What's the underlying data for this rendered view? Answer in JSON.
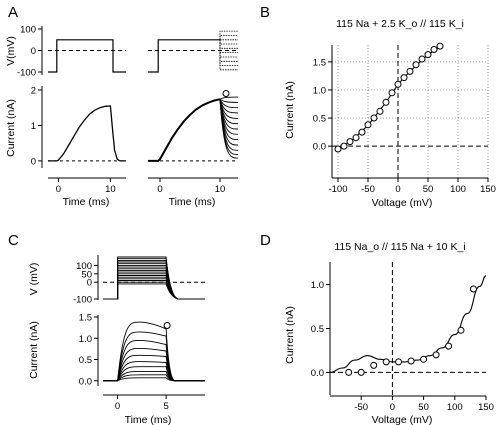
{
  "panels": {
    "A": {
      "label": "A"
    },
    "B": {
      "label": "B"
    },
    "C": {
      "label": "C"
    },
    "D": {
      "label": "D"
    }
  },
  "chart_data": [
    {
      "panel": "A-left-voltage",
      "type": "line",
      "ylabel": "V(mV)",
      "ylim": [
        -100,
        100
      ],
      "yticks": [
        -100,
        0,
        100
      ],
      "xlim": [
        -2,
        13
      ],
      "series": [
        {
          "x": [
            -2,
            -0.3,
            -0.3,
            10.5,
            10.5,
            13
          ],
          "values": [
            -100,
            -100,
            50,
            50,
            -100,
            -100
          ]
        }
      ],
      "reference_line": 0
    },
    {
      "panel": "A-right-voltage",
      "type": "line",
      "xlim": [
        -2,
        13
      ],
      "series": [
        {
          "x": [
            -2,
            -0.3,
            -0.3,
            10,
            10,
            13
          ],
          "values": [
            -100,
            -100,
            50,
            50,
            90,
            90
          ]
        }
      ],
      "step_family": {
        "x_start": 10,
        "x_end": 13,
        "values": [
          90,
          70,
          50,
          30,
          10,
          -10,
          -30,
          -50,
          -70,
          -90
        ]
      },
      "reference_line": 0
    },
    {
      "panel": "A-left-current",
      "type": "line",
      "xlabel": "Time (ms)",
      "ylabel": "Current (nA)",
      "xlim": [
        -2,
        13
      ],
      "ylim": [
        -0.2,
        2
      ],
      "xticks": [
        0,
        10
      ],
      "yticks": [
        0,
        1,
        2
      ],
      "series": [
        {
          "x": [
            -2,
            -0.3,
            0,
            1,
            2,
            3,
            4,
            5,
            6,
            7,
            8,
            9,
            10,
            10.4,
            10.8,
            11.3,
            11.8,
            13
          ],
          "values": [
            0,
            0,
            0.02,
            0.2,
            0.45,
            0.7,
            0.95,
            1.15,
            1.32,
            1.43,
            1.5,
            1.54,
            1.55,
            0.9,
            0.3,
            0.05,
            0,
            0
          ]
        }
      ],
      "reference_line": 0
    },
    {
      "panel": "A-right-current",
      "type": "line",
      "xlabel": "Time (ms)",
      "xlim": [
        -2,
        13
      ],
      "ylim": [
        -0.2,
        2
      ],
      "xticks": [
        0,
        10
      ],
      "series": [
        {
          "x": [
            -2,
            -0.3,
            0,
            1,
            2,
            3,
            4,
            5,
            6,
            7,
            8,
            9,
            10
          ],
          "values": [
            0,
            0,
            0.05,
            0.35,
            0.65,
            0.9,
            1.12,
            1.3,
            1.45,
            1.56,
            1.64,
            1.7,
            1.74
          ]
        }
      ],
      "tail_levels": [
        1.8,
        1.65,
        1.5,
        1.35,
        1.2,
        1.05,
        0.9,
        0.75,
        0.6,
        0.45,
        0.3,
        0.18,
        0.08
      ],
      "marker": {
        "x": 11,
        "y": 1.9
      },
      "reference_line": 0
    },
    {
      "panel": "B",
      "type": "scatter",
      "title": "115 Na + 2.5 K_o // 115 K_i",
      "xlabel": "Voltage (mV)",
      "ylabel": "Current (nA)",
      "xlim": [
        -110,
        150
      ],
      "ylim": [
        -0.3,
        1.8
      ],
      "xticks": [
        -100,
        -50,
        0,
        50,
        100,
        150
      ],
      "yticks": [
        0.0,
        0.5,
        1.0,
        1.5
      ],
      "grid": true,
      "series": [
        {
          "x": [
            -100,
            -90,
            -80,
            -70,
            -60,
            -50,
            -40,
            -30,
            -20,
            -10,
            0,
            10,
            20,
            30,
            40,
            50,
            60,
            70
          ],
          "values": [
            -0.05,
            0.0,
            0.08,
            0.15,
            0.25,
            0.38,
            0.5,
            0.62,
            0.78,
            0.95,
            1.1,
            1.22,
            1.33,
            1.45,
            1.55,
            1.63,
            1.72,
            1.78
          ]
        }
      ],
      "fit_line": {
        "x": [
          -105,
          -80,
          -50,
          -20,
          0,
          20,
          50,
          75
        ],
        "values": [
          -0.05,
          0.07,
          0.37,
          0.78,
          1.1,
          1.33,
          1.63,
          1.8
        ]
      },
      "reference_lines": {
        "x": 0,
        "y": 0
      }
    },
    {
      "panel": "C-voltage",
      "type": "line",
      "ylabel": "V (mV)",
      "xlim": [
        -1.5,
        9
      ],
      "ylim": [
        -100,
        150
      ],
      "yticks": [
        -100,
        0,
        50,
        100
      ],
      "step_family": {
        "x_start": 0,
        "x_end": 5,
        "values": [
          150,
          140,
          130,
          120,
          110,
          100,
          90,
          80,
          70,
          60,
          50,
          40,
          30,
          20,
          10,
          0,
          -10
        ]
      },
      "reference_line": 0
    },
    {
      "panel": "C-current",
      "type": "line",
      "xlabel": "Time (ms)",
      "ylabel": "Current (nA)",
      "xlim": [
        -1.5,
        9
      ],
      "ylim": [
        -0.1,
        1.5
      ],
      "xticks": [
        0,
        5
      ],
      "yticks": [
        0.0,
        0.5,
        1.0,
        1.5
      ],
      "series": [
        {
          "name": "",
          "plateau": 1.38,
          "end": 1.22
        },
        {
          "name": "",
          "plateau": 1.15,
          "end": 1.05
        },
        {
          "name": "",
          "plateau": 0.95,
          "end": 0.85
        },
        {
          "name": "",
          "plateau": 0.76,
          "end": 0.7
        },
        {
          "name": "",
          "plateau": 0.6,
          "end": 0.57
        },
        {
          "name": "",
          "plateau": 0.45,
          "end": 0.43
        },
        {
          "name": "",
          "plateau": 0.33,
          "end": 0.33
        },
        {
          "name": "",
          "plateau": 0.22,
          "end": 0.22
        },
        {
          "name": "",
          "plateau": 0.14,
          "end": 0.14
        },
        {
          "name": "",
          "plateau": 0.07,
          "end": 0.07
        }
      ],
      "marker": {
        "x": 5.1,
        "y": 1.3
      }
    },
    {
      "panel": "D",
      "type": "scatter",
      "title": "115 Na_o // 115 Na + 10 K_i",
      "xlabel": "Voltage (mV)",
      "ylabel": "Current (nA)",
      "xlim": [
        -100,
        150
      ],
      "ylim": [
        -0.2,
        1.2
      ],
      "xticks": [
        -50,
        0,
        50,
        100,
        150
      ],
      "yticks": [
        0.0,
        0.5,
        1.0
      ],
      "series": [
        {
          "x": [
            -70,
            -50,
            -30,
            -10,
            10,
            30,
            50,
            70,
            90,
            110,
            130
          ],
          "values": [
            0.0,
            0.0,
            0.08,
            0.12,
            0.12,
            0.13,
            0.15,
            0.2,
            0.3,
            0.48,
            0.95
          ]
        }
      ],
      "fit_line": {
        "x": [
          -100,
          -80,
          -60,
          -40,
          -20,
          0,
          20,
          40,
          60,
          80,
          100,
          120,
          140,
          150
        ],
        "values": [
          0.0,
          0.05,
          0.14,
          0.19,
          0.15,
          0.12,
          0.12,
          0.14,
          0.19,
          0.28,
          0.43,
          0.67,
          0.98,
          1.1
        ]
      },
      "reference_lines": {
        "x": 0,
        "y": 0
      }
    }
  ]
}
